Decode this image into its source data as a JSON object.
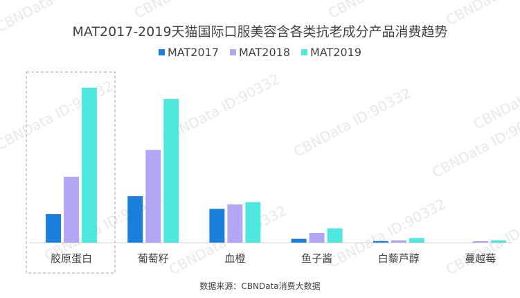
{
  "chart_data": {
    "type": "bar",
    "title": "MAT2017-2019天猫国际口服美容含各类抗老成分产品消费趋势",
    "categories": [
      "胶原蛋白",
      "葡萄籽",
      "血橙",
      "鱼子酱",
      "白藜芦醇",
      "蔓越莓"
    ],
    "series": [
      {
        "name": "MAT2017",
        "color": "#1A7FDB",
        "values": [
          38,
          62,
          45,
          5,
          2,
          0
        ]
      },
      {
        "name": "MAT2018",
        "color": "#B3A6F5",
        "values": [
          88,
          124,
          51,
          13,
          3,
          1
        ]
      },
      {
        "name": "MAT2019",
        "color": "#4FE8DE",
        "values": [
          207,
          192,
          54,
          19,
          6,
          3
        ]
      }
    ],
    "ylim": [
      0,
      215
    ],
    "xlabel": "",
    "ylabel": "",
    "grid": false,
    "legend_position": "top-center",
    "highlighted_category": "胶原蛋白",
    "source": "数据来源：CBNData消费大数据"
  },
  "watermark": {
    "text": "CBNData ID:90332",
    "color": "#e8e8e8"
  }
}
